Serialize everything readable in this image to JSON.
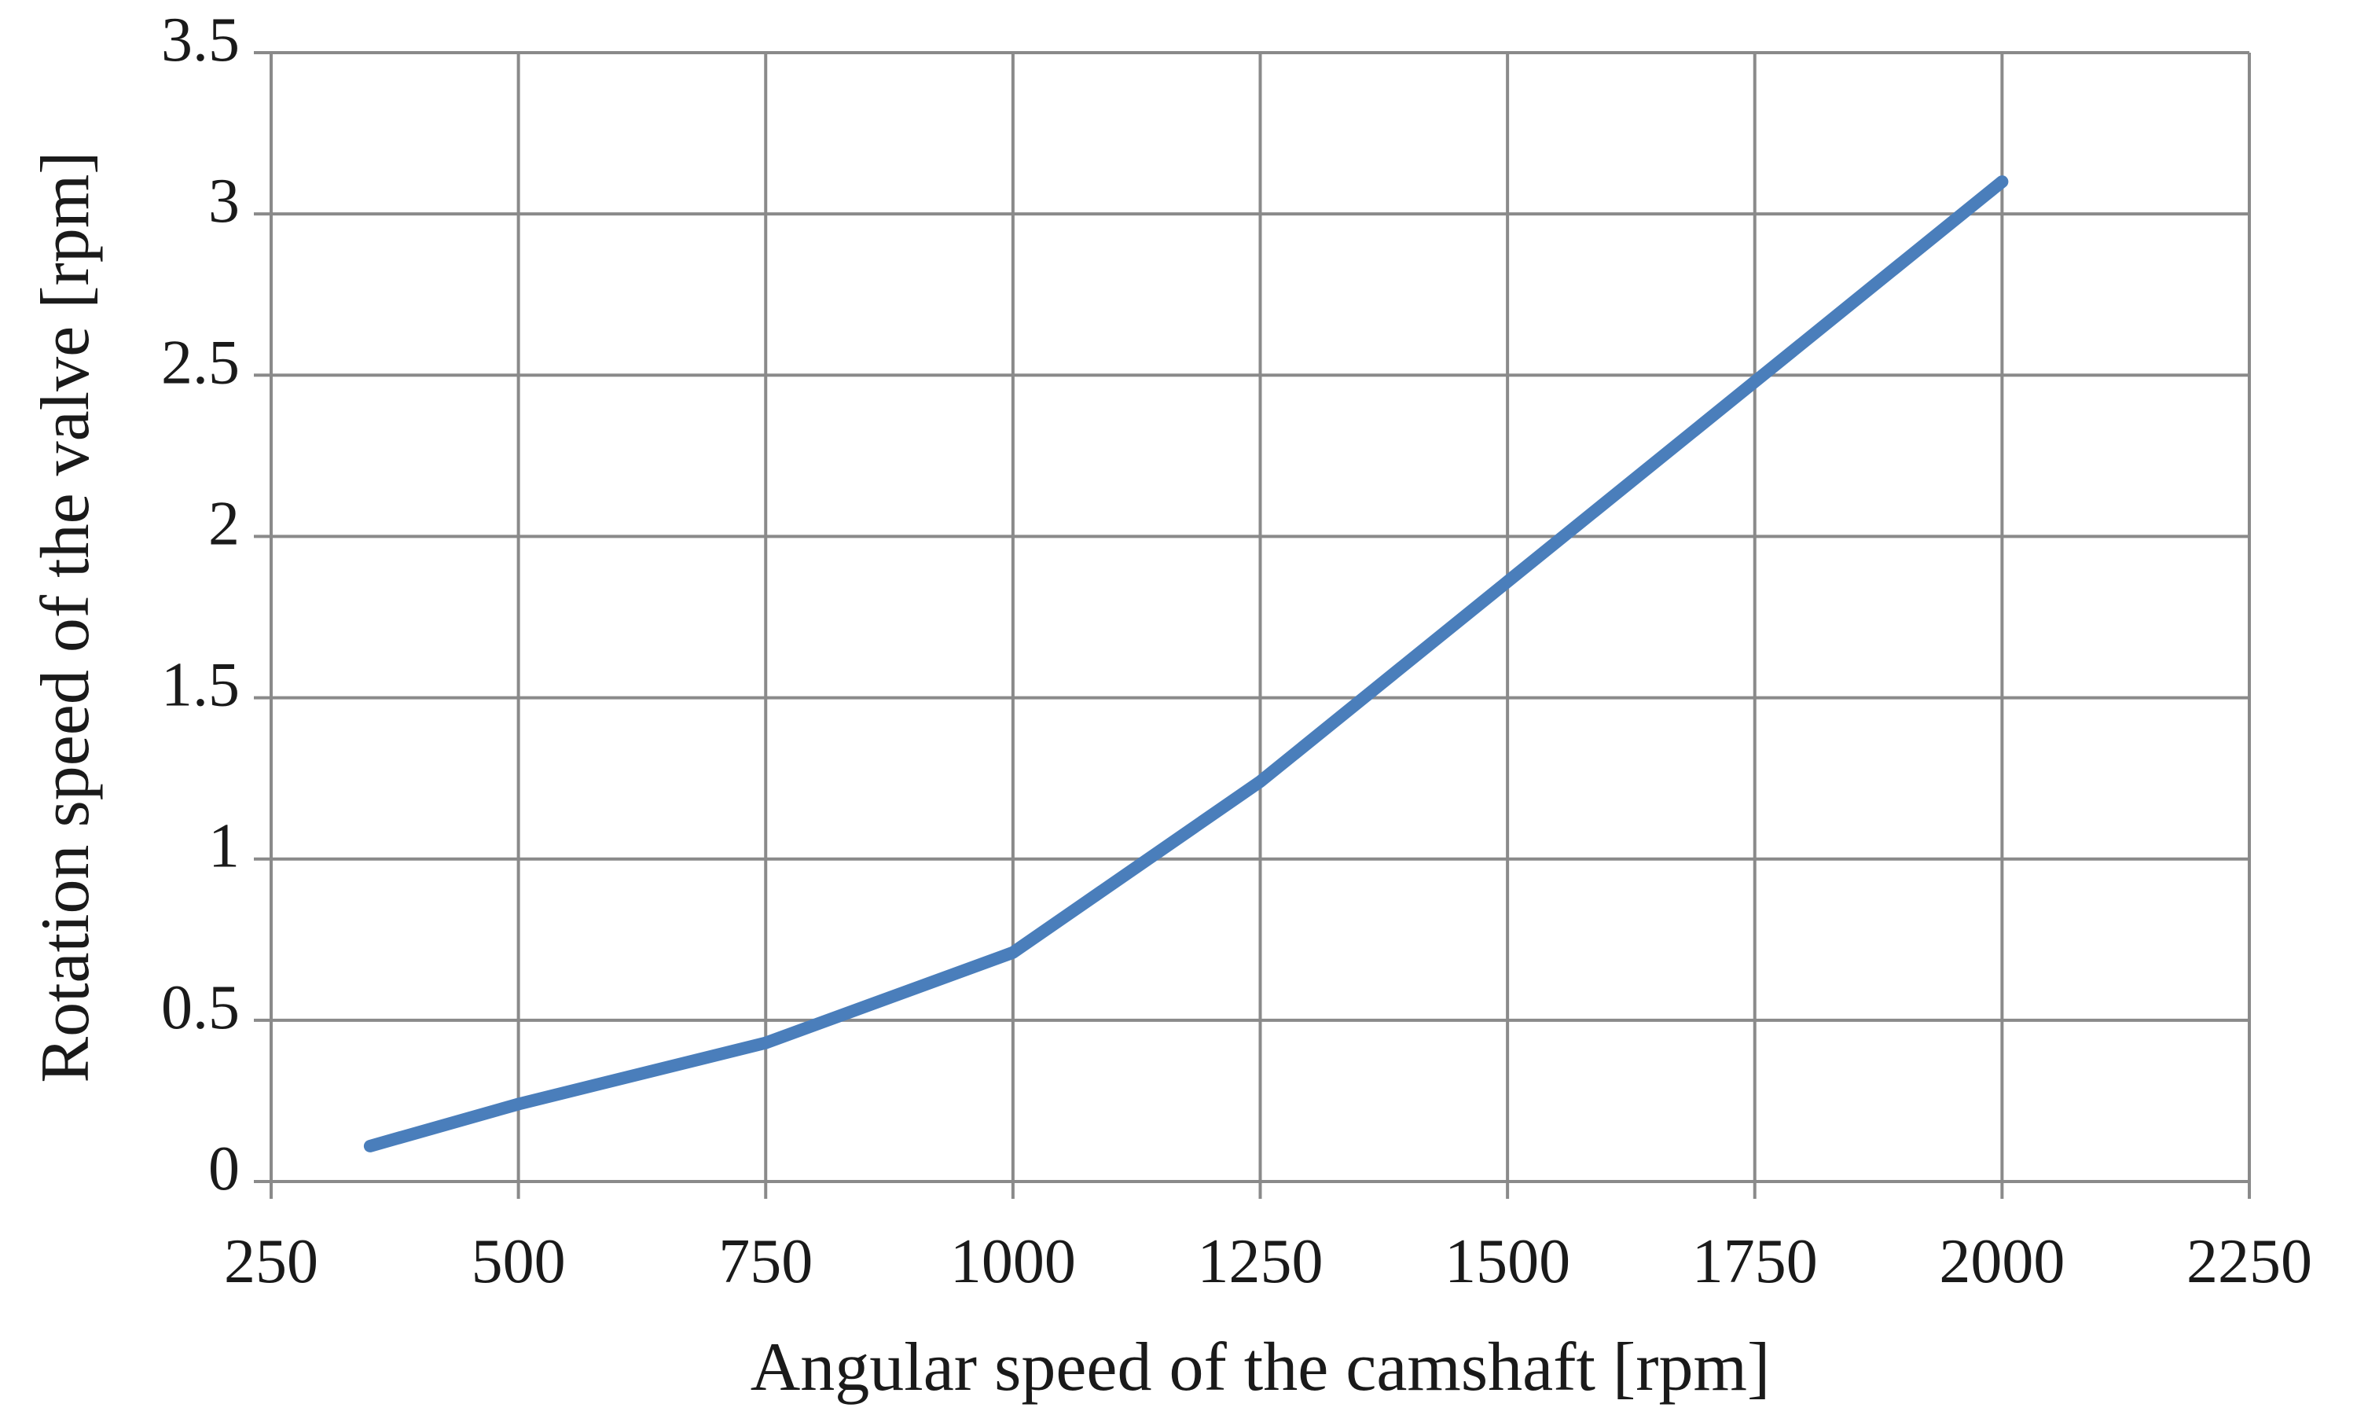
{
  "chart_data": {
    "type": "line",
    "title": "",
    "xlabel": "Angular speed of the camshaft [rpm]",
    "ylabel": "Rotation speed of the valve [rpm]",
    "xlim": [
      250,
      2250
    ],
    "ylim": [
      0,
      3.5
    ],
    "x_ticks": [
      250,
      500,
      750,
      1000,
      1250,
      1500,
      1750,
      2000,
      2250
    ],
    "y_ticks": [
      0,
      0.5,
      1,
      1.5,
      2,
      2.5,
      3,
      3.5
    ],
    "x_tick_labels": [
      "250",
      "500",
      "750",
      "1000",
      "1250",
      "1500",
      "1750",
      "2000",
      "2250"
    ],
    "y_tick_labels": [
      "0",
      "0.5",
      "1",
      "1.5",
      "2",
      "2.5",
      "3",
      "3.5"
    ],
    "grid": true,
    "series": [
      {
        "name": "Rotation speed of the valve",
        "color": "#4a7ebb",
        "x": [
          350,
          500,
          750,
          1000,
          1250,
          1500,
          1750,
          2000
        ],
        "y": [
          0.11,
          0.24,
          0.43,
          0.71,
          1.24,
          1.86,
          2.48,
          3.1
        ]
      }
    ]
  }
}
